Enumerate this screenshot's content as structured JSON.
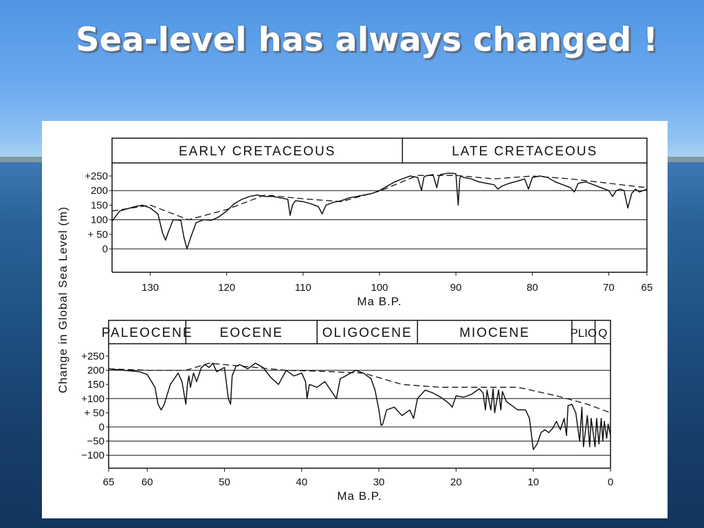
{
  "slide": {
    "title": "Sea-level has always changed !"
  },
  "colors": {
    "sky": "#6aa9ef",
    "sea": "#1e4f81",
    "title_text": "#ffffff",
    "curve": "#111111",
    "panel": "#ffffff"
  },
  "chart_data": [
    {
      "type": "line",
      "title": "",
      "epochs": [
        "EARLY CRETACEOUS",
        "LATE CRETACEOUS"
      ],
      "epoch_boundaries_ma": [
        135,
        97,
        65
      ],
      "x_reversed": true,
      "xlim": [
        135,
        65
      ],
      "ylim": [
        -75,
        275
      ],
      "xlabel": "Ma B.P.",
      "ylabel": "Change in Global Sea Level (m)",
      "x_ticks": [
        130,
        120,
        110,
        100,
        90,
        80,
        70,
        65
      ],
      "y_ticks": [
        "+250",
        "200",
        "150",
        "100",
        "+ 50",
        "0"
      ],
      "y_tick_values": [
        250,
        200,
        150,
        100,
        50,
        0
      ],
      "grid": "horizontal",
      "series": [
        {
          "style": "solid",
          "x": [
            135,
            134,
            132,
            131,
            130,
            129,
            128.4,
            128,
            127.6,
            127,
            126,
            125.6,
            125.2,
            124.7,
            124,
            123,
            122,
            121,
            120,
            119,
            118,
            117,
            116,
            115,
            114,
            113,
            112,
            111.7,
            111.4,
            111,
            110,
            109,
            108,
            107.5,
            107,
            106.5,
            106,
            105,
            104,
            103,
            102,
            101,
            100,
            99,
            98,
            97,
            96,
            95,
            94.5,
            94.2,
            94,
            93,
            92.5,
            92.2,
            92,
            91,
            90,
            89.7,
            89.5,
            89.3,
            89,
            88,
            87,
            86,
            85,
            84.5,
            84,
            83,
            82,
            81,
            80.5,
            80,
            79,
            78,
            77,
            76,
            75,
            74.5,
            74,
            73,
            72,
            71,
            70,
            69.5,
            69,
            68.5,
            68,
            67.5,
            67,
            66.5,
            66,
            65
          ],
          "y": [
            95,
            130,
            145,
            150,
            140,
            120,
            55,
            30,
            60,
            100,
            98,
            40,
            0,
            40,
            90,
            100,
            98,
            110,
            130,
            155,
            170,
            180,
            185,
            180,
            180,
            175,
            170,
            115,
            150,
            165,
            162,
            155,
            145,
            120,
            150,
            155,
            160,
            165,
            175,
            180,
            185,
            190,
            200,
            215,
            230,
            240,
            250,
            245,
            200,
            245,
            250,
            255,
            210,
            250,
            255,
            260,
            258,
            150,
            240,
            250,
            245,
            240,
            230,
            225,
            220,
            205,
            215,
            225,
            232,
            240,
            205,
            245,
            250,
            245,
            230,
            220,
            210,
            195,
            225,
            230,
            220,
            210,
            200,
            180,
            200,
            205,
            200,
            140,
            190,
            205,
            195,
            205
          ]
        },
        {
          "style": "dashed",
          "x": [
            135,
            130,
            125,
            120,
            115,
            110,
            105,
            100,
            95,
            90,
            85,
            80,
            75,
            70,
            65
          ],
          "y": [
            130,
            150,
            100,
            135,
            185,
            172,
            162,
            198,
            252,
            252,
            240,
            250,
            240,
            225,
            210
          ]
        }
      ]
    },
    {
      "type": "line",
      "title": "",
      "epochs": [
        "PALEOCENE",
        "EOCENE",
        "OLIGOCENE",
        "MIOCENE",
        "PLIO",
        "Q"
      ],
      "epoch_boundaries_ma": [
        65,
        55,
        38,
        25,
        5,
        2,
        0
      ],
      "x_reversed": true,
      "xlim": [
        65,
        0
      ],
      "ylim": [
        -125,
        275
      ],
      "xlabel": "Ma B.P.",
      "ylabel": "Change in Global Sea Level (m)",
      "x_ticks": [
        65,
        60,
        50,
        40,
        30,
        20,
        10,
        0
      ],
      "y_ticks": [
        "+250",
        "200",
        "150",
        "+100",
        "+ 50",
        "0",
        "−50",
        "−100"
      ],
      "y_tick_values": [
        250,
        200,
        150,
        100,
        50,
        0,
        -50,
        -100
      ],
      "grid": "horizontal",
      "series": [
        {
          "style": "solid",
          "x": [
            65,
            63,
            61,
            60,
            59,
            58.6,
            58.2,
            57.8,
            57,
            56,
            55.5,
            55,
            54.8,
            54.6,
            54.4,
            54,
            53.6,
            53,
            52.5,
            52,
            51.5,
            51,
            50,
            49.5,
            49.2,
            49,
            48.5,
            48,
            47,
            46,
            45,
            44,
            43,
            42,
            41,
            40,
            39.5,
            39.3,
            39,
            38,
            37,
            36,
            35.5,
            35,
            34,
            33,
            32,
            31,
            30.5,
            30,
            29.7,
            29.5,
            29,
            28,
            27,
            26,
            25.5,
            25,
            24,
            23,
            22,
            21,
            20.5,
            20,
            19,
            18,
            17,
            16.5,
            16.2,
            16,
            15.5,
            15.2,
            15,
            14.5,
            14.2,
            14,
            13.5,
            13,
            12,
            11,
            10.5,
            10,
            9.5,
            9,
            8.5,
            8,
            7.5,
            7,
            6.5,
            6,
            5.7,
            5.5,
            5,
            4.5,
            4,
            3.7,
            3.5,
            3,
            2.7,
            2.5,
            2,
            1.8,
            1.5,
            1.2,
            1,
            0.8,
            0.5,
            0.3,
            0
          ],
          "y": [
            205,
            200,
            195,
            185,
            140,
            80,
            60,
            80,
            150,
            190,
            160,
            80,
            150,
            180,
            140,
            190,
            160,
            210,
            220,
            210,
            225,
            195,
            210,
            100,
            80,
            180,
            215,
            220,
            205,
            225,
            210,
            175,
            150,
            200,
            180,
            190,
            160,
            100,
            150,
            140,
            160,
            120,
            100,
            170,
            185,
            200,
            190,
            170,
            130,
            60,
            5,
            10,
            60,
            70,
            40,
            60,
            30,
            100,
            130,
            120,
            105,
            85,
            70,
            110,
            105,
            115,
            135,
            120,
            60,
            130,
            60,
            135,
            50,
            130,
            60,
            125,
            90,
            80,
            60,
            60,
            30,
            -80,
            -60,
            -20,
            -10,
            -20,
            -5,
            20,
            -10,
            30,
            -30,
            75,
            80,
            50,
            -50,
            70,
            -70,
            40,
            -70,
            30,
            -70,
            30,
            -60,
            30,
            -50,
            20,
            -40,
            10,
            -30
          ]
        },
        {
          "style": "dashed",
          "x": [
            65,
            60,
            55,
            52,
            48,
            42,
            36,
            32,
            27,
            22,
            17,
            12,
            7,
            3,
            0
          ],
          "y": [
            205,
            200,
            200,
            225,
            215,
            200,
            195,
            190,
            150,
            140,
            140,
            140,
            110,
            80,
            50
          ]
        }
      ]
    }
  ]
}
